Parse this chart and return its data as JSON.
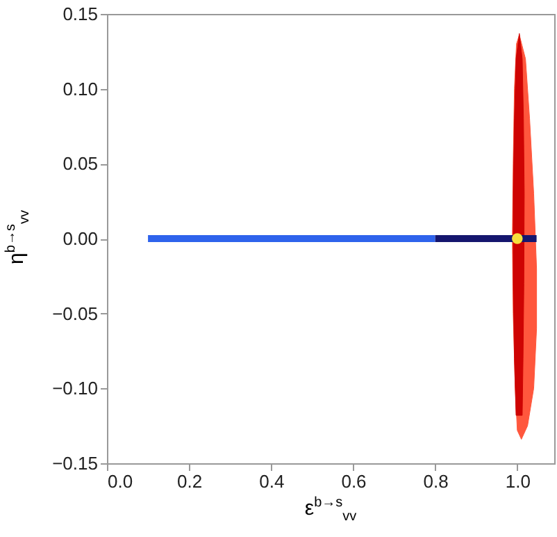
{
  "chart_data": {
    "type": "line",
    "xlabel": "ε$^{b→s}$$_{vv}$",
    "ylabel": "η$^{b→s}$$_{vv}$",
    "xlim": [
      0,
      1.09
    ],
    "ylim": [
      -0.15,
      0.15
    ],
    "xticks": [
      {
        "value": 0,
        "label": "0.0"
      },
      {
        "value": 0.2,
        "label": "0.2"
      },
      {
        "value": 0.4,
        "label": "0.4"
      },
      {
        "value": 0.6,
        "label": "0.6"
      },
      {
        "value": 0.8,
        "label": "0.8"
      },
      {
        "value": 1,
        "label": "1.0"
      }
    ],
    "yticks": [
      {
        "value": -0.15,
        "label": "−0.15"
      },
      {
        "value": -0.1,
        "label": "−0.10"
      },
      {
        "value": -0.05,
        "label": "−0.05"
      },
      {
        "value": 0,
        "label": "0.00"
      },
      {
        "value": 0.05,
        "label": "0.05"
      },
      {
        "value": 0.1,
        "label": "0.10"
      },
      {
        "value": 0.15,
        "label": "0.15"
      }
    ],
    "series": [
      {
        "type": "area",
        "color": "#ff4f33",
        "x": [
          1.005,
          1.02,
          1.03,
          1.04,
          1.047,
          1.047,
          1.04,
          1.025,
          1.01,
          1.0,
          0.995,
          0.99,
          0.988,
          0.99,
          0.993,
          0.998
        ],
        "values": [
          0.136,
          0.12,
          0.08,
          0.03,
          -0.02,
          -0.06,
          -0.1,
          -0.125,
          -0.134,
          -0.128,
          -0.1,
          -0.05,
          0,
          0.05,
          0.1,
          0.13
        ]
      },
      {
        "type": "area",
        "color": "#cc0000",
        "x": [
          1.005,
          1.012,
          1.015,
          1.017,
          1.016,
          1.014,
          1.012,
          0.997,
          0.993,
          0.99,
          0.99,
          0.993,
          0.997
        ],
        "values": [
          0.137,
          0.12,
          0.08,
          0.03,
          -0.03,
          -0.08,
          -0.118,
          -0.118,
          -0.08,
          -0.03,
          0.03,
          0.08,
          0.12
        ]
      },
      {
        "color": "#2e63ec",
        "x": [
          0.1,
          0.8
        ],
        "values": [
          0,
          0
        ]
      },
      {
        "color": "#15166e",
        "x": [
          0.8,
          1.047
        ],
        "values": [
          0,
          0
        ]
      },
      {
        "type": "scatter",
        "color": "#f7e03c",
        "x": [
          1.0
        ],
        "values": [
          0
        ]
      }
    ]
  }
}
